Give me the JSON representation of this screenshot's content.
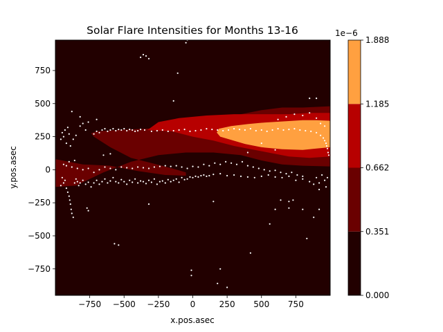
{
  "chart_data": {
    "type": "heatmap",
    "title": "Solar Flare Intensities for Months 13-16",
    "xlabel": "x.pos.asec",
    "ylabel": "y.pos.asec",
    "xlim": [
      -1000,
      1000
    ],
    "ylim": [
      -950,
      980
    ],
    "x_ticks": [
      -750,
      -500,
      -250,
      0,
      250,
      500,
      750
    ],
    "x_tick_labels": [
      "−750",
      "−500",
      "−250",
      "0",
      "250",
      "500",
      "750"
    ],
    "y_ticks": [
      -750,
      -500,
      -250,
      0,
      250,
      500,
      750
    ],
    "y_tick_labels": [
      "−750",
      "−500",
      "−250",
      "0",
      "250",
      "500",
      "750"
    ],
    "colorbar": {
      "multiplier": "1e−6",
      "levels": [
        0.0,
        0.351,
        0.662,
        1.185,
        1.888
      ],
      "level_labels": [
        "0.000",
        "0.351",
        "0.662",
        "1.185",
        "1.888"
      ],
      "colors": [
        "#220000",
        "#6a0000",
        "#b70000",
        "#ffa040"
      ]
    },
    "contours": [
      {
        "level_index": 1,
        "points": [
          [
            -1000,
            -130
          ],
          [
            -850,
            -120
          ],
          [
            -650,
            -20
          ],
          [
            -450,
            60
          ],
          [
            -250,
            110
          ],
          [
            -50,
            130
          ],
          [
            150,
            130
          ],
          [
            350,
            110
          ],
          [
            500,
            70
          ],
          [
            650,
            40
          ],
          [
            800,
            30
          ],
          [
            1000,
            25
          ],
          [
            1000,
            480
          ],
          [
            800,
            470
          ],
          [
            650,
            470
          ],
          [
            500,
            450
          ],
          [
            350,
            420
          ],
          [
            200,
            380
          ],
          [
            50,
            340
          ],
          [
            -150,
            320
          ],
          [
            -350,
            310
          ],
          [
            -550,
            300
          ],
          [
            -700,
            290
          ],
          [
            -740,
            275
          ],
          [
            -720,
            250
          ],
          [
            -600,
            170
          ],
          [
            -450,
            90
          ],
          [
            -300,
            50
          ],
          [
            -150,
            10
          ],
          [
            -50,
            -20
          ],
          [
            -50,
            -45
          ],
          [
            -200,
            -40
          ],
          [
            -400,
            -10
          ],
          [
            -600,
            30
          ],
          [
            -800,
            40
          ],
          [
            -900,
            60
          ],
          [
            -1000,
            80
          ]
        ]
      },
      {
        "level_index": 2,
        "points": [
          [
            1000,
            100
          ],
          [
            850,
            90
          ],
          [
            700,
            100
          ],
          [
            500,
            140
          ],
          [
            300,
            180
          ],
          [
            150,
            220
          ],
          [
            0,
            250
          ],
          [
            -150,
            290
          ],
          [
            -330,
            300
          ],
          [
            -250,
            360
          ],
          [
            -100,
            390
          ],
          [
            100,
            410
          ],
          [
            300,
            420
          ],
          [
            500,
            420
          ],
          [
            700,
            420
          ],
          [
            850,
            430
          ],
          [
            1000,
            430
          ]
        ]
      },
      {
        "level_index": 3,
        "points": [
          [
            1000,
            170
          ],
          [
            900,
            160
          ],
          [
            800,
            150
          ],
          [
            650,
            155
          ],
          [
            500,
            170
          ],
          [
            380,
            195
          ],
          [
            200,
            250
          ],
          [
            175,
            280
          ],
          [
            190,
            310
          ],
          [
            280,
            330
          ],
          [
            400,
            345
          ],
          [
            500,
            355
          ],
          [
            650,
            365
          ],
          [
            800,
            375
          ],
          [
            900,
            375
          ],
          [
            1000,
            370
          ]
        ]
      }
    ],
    "scatter_points": [
      [
        -960,
        -120
      ],
      [
        -950,
        -60
      ],
      [
        -940,
        -100
      ],
      [
        -930,
        -80
      ],
      [
        -920,
        -140
      ],
      [
        -910,
        -170
      ],
      [
        -900,
        -200
      ],
      [
        -895,
        -230
      ],
      [
        -890,
        -260
      ],
      [
        -885,
        -300
      ],
      [
        -880,
        -330
      ],
      [
        -870,
        -360
      ],
      [
        -860,
        -100
      ],
      [
        -850,
        -70
      ],
      [
        -840,
        -90
      ],
      [
        -830,
        -120
      ],
      [
        -820,
        -100
      ],
      [
        -800,
        -80
      ],
      [
        -780,
        -110
      ],
      [
        -760,
        -95
      ],
      [
        -740,
        -130
      ],
      [
        -720,
        -100
      ],
      [
        -700,
        -80
      ],
      [
        -680,
        -110
      ],
      [
        -660,
        -90
      ],
      [
        -640,
        -70
      ],
      [
        -620,
        -100
      ],
      [
        -600,
        -85
      ],
      [
        -580,
        -60
      ],
      [
        -560,
        -90
      ],
      [
        -540,
        -100
      ],
      [
        -520,
        -75
      ],
      [
        -500,
        -90
      ],
      [
        -480,
        -110
      ],
      [
        -460,
        -80
      ],
      [
        -440,
        -95
      ],
      [
        -420,
        -70
      ],
      [
        -400,
        -100
      ],
      [
        -380,
        -85
      ],
      [
        -360,
        -90
      ],
      [
        -340,
        -105
      ],
      [
        -320,
        -80
      ],
      [
        -300,
        -95
      ],
      [
        -280,
        -70
      ],
      [
        -260,
        -110
      ],
      [
        -240,
        -90
      ],
      [
        -220,
        -85
      ],
      [
        -200,
        -100
      ],
      [
        -180,
        -75
      ],
      [
        -160,
        -90
      ],
      [
        -140,
        -80
      ],
      [
        -120,
        -70
      ],
      [
        -100,
        -95
      ],
      [
        -80,
        -60
      ],
      [
        -60,
        -75
      ],
      [
        -40,
        -70
      ],
      [
        -20,
        -55
      ],
      [
        0,
        -60
      ],
      [
        20,
        -50
      ],
      [
        40,
        -55
      ],
      [
        60,
        -45
      ],
      [
        80,
        -40
      ],
      [
        100,
        -50
      ],
      [
        120,
        -45
      ],
      [
        150,
        -35
      ],
      [
        200,
        -30
      ],
      [
        250,
        -45
      ],
      [
        300,
        -40
      ],
      [
        350,
        -50
      ],
      [
        400,
        -55
      ],
      [
        450,
        -60
      ],
      [
        500,
        -50
      ],
      [
        550,
        -40
      ],
      [
        600,
        -55
      ],
      [
        650,
        -60
      ],
      [
        700,
        -50
      ],
      [
        750,
        -80
      ],
      [
        800,
        -70
      ],
      [
        850,
        -90
      ],
      [
        880,
        -110
      ],
      [
        900,
        -60
      ],
      [
        920,
        -100
      ],
      [
        940,
        -40
      ],
      [
        960,
        -80
      ],
      [
        970,
        -130
      ],
      [
        980,
        -60
      ],
      [
        -940,
        40
      ],
      [
        -920,
        30
      ],
      [
        -900,
        60
      ],
      [
        -880,
        20
      ],
      [
        -860,
        70
      ],
      [
        -840,
        10
      ],
      [
        -800,
        0
      ],
      [
        -760,
        10
      ],
      [
        -720,
        -20
      ],
      [
        -680,
        0
      ],
      [
        -640,
        20
      ],
      [
        -600,
        10
      ],
      [
        -560,
        0
      ],
      [
        -520,
        20
      ],
      [
        -480,
        15
      ],
      [
        -440,
        10
      ],
      [
        -400,
        20
      ],
      [
        -360,
        15
      ],
      [
        -320,
        10
      ],
      [
        -280,
        20
      ],
      [
        -240,
        25
      ],
      [
        -200,
        30
      ],
      [
        -160,
        25
      ],
      [
        -120,
        30
      ],
      [
        -80,
        20
      ],
      [
        -40,
        10
      ],
      [
        0,
        25
      ],
      [
        40,
        20
      ],
      [
        80,
        40
      ],
      [
        120,
        30
      ],
      [
        160,
        50
      ],
      [
        200,
        40
      ],
      [
        240,
        60
      ],
      [
        280,
        50
      ],
      [
        320,
        40
      ],
      [
        360,
        60
      ],
      [
        400,
        30
      ],
      [
        440,
        20
      ],
      [
        480,
        10
      ],
      [
        520,
        0
      ],
      [
        560,
        -10
      ],
      [
        600,
        -5
      ],
      [
        640,
        -20
      ],
      [
        680,
        -30
      ],
      [
        720,
        -20
      ],
      [
        760,
        -40
      ],
      [
        800,
        -50
      ],
      [
        -960,
        230
      ],
      [
        -950,
        280
      ],
      [
        -940,
        250
      ],
      [
        -930,
        300
      ],
      [
        -920,
        200
      ],
      [
        -910,
        320
      ],
      [
        -900,
        270
      ],
      [
        -890,
        180
      ],
      [
        -870,
        230
      ],
      [
        -850,
        260
      ],
      [
        -720,
        270
      ],
      [
        -700,
        290
      ],
      [
        -680,
        280
      ],
      [
        -660,
        300
      ],
      [
        -640,
        310
      ],
      [
        -620,
        290
      ],
      [
        -600,
        300
      ],
      [
        -580,
        310
      ],
      [
        -560,
        295
      ],
      [
        -540,
        305
      ],
      [
        -520,
        300
      ],
      [
        -500,
        310
      ],
      [
        -480,
        295
      ],
      [
        -460,
        305
      ],
      [
        -440,
        300
      ],
      [
        -420,
        290
      ],
      [
        -400,
        295
      ],
      [
        -380,
        305
      ],
      [
        -350,
        300
      ],
      [
        -300,
        290
      ],
      [
        -260,
        295
      ],
      [
        -220,
        300
      ],
      [
        -180,
        290
      ],
      [
        -140,
        295
      ],
      [
        -100,
        300
      ],
      [
        -60,
        305
      ],
      [
        -20,
        290
      ],
      [
        20,
        295
      ],
      [
        60,
        300
      ],
      [
        100,
        310
      ],
      [
        140,
        305
      ],
      [
        180,
        300
      ],
      [
        220,
        295
      ],
      [
        260,
        300
      ],
      [
        300,
        310
      ],
      [
        340,
        305
      ],
      [
        380,
        300
      ],
      [
        420,
        310
      ],
      [
        460,
        295
      ],
      [
        500,
        300
      ],
      [
        540,
        290
      ],
      [
        580,
        300
      ],
      [
        620,
        310
      ],
      [
        660,
        300
      ],
      [
        700,
        305
      ],
      [
        740,
        310
      ],
      [
        780,
        300
      ],
      [
        820,
        295
      ],
      [
        860,
        290
      ],
      [
        900,
        280
      ],
      [
        930,
        260
      ],
      [
        950,
        240
      ],
      [
        960,
        220
      ],
      [
        970,
        200
      ],
      [
        975,
        180
      ],
      [
        980,
        160
      ],
      [
        985,
        130
      ],
      [
        990,
        110
      ],
      [
        620,
        380
      ],
      [
        680,
        400
      ],
      [
        740,
        420
      ],
      [
        800,
        410
      ],
      [
        850,
        430
      ],
      [
        900,
        390
      ],
      [
        930,
        350
      ],
      [
        960,
        330
      ],
      [
        -820,
        330
      ],
      [
        -800,
        350
      ],
      [
        -780,
        300
      ],
      [
        -760,
        360
      ],
      [
        -880,
        440
      ],
      [
        -820,
        400
      ],
      [
        -700,
        380
      ],
      [
        -380,
        850
      ],
      [
        -360,
        870
      ],
      [
        -340,
        860
      ],
      [
        -320,
        840
      ],
      [
        -110,
        730
      ],
      [
        -50,
        960
      ],
      [
        -40,
        980
      ],
      [
        -20,
        990
      ],
      [
        -140,
        520
      ],
      [
        -570,
        -560
      ],
      [
        -540,
        -570
      ],
      [
        -770,
        -290
      ],
      [
        -760,
        -310
      ],
      [
        -650,
        110
      ],
      [
        -600,
        120
      ],
      [
        -320,
        -260
      ],
      [
        150,
        -240
      ],
      [
        -10,
        -760
      ],
      [
        -10,
        -800
      ],
      [
        200,
        -750
      ],
      [
        180,
        -860
      ],
      [
        250,
        -890
      ],
      [
        420,
        -630
      ],
      [
        560,
        -410
      ],
      [
        600,
        -300
      ],
      [
        700,
        -290
      ],
      [
        800,
        -300
      ],
      [
        830,
        -520
      ],
      [
        880,
        -360
      ],
      [
        920,
        -300
      ],
      [
        850,
        540
      ],
      [
        900,
        540
      ],
      [
        700,
        -240
      ],
      [
        640,
        -230
      ],
      [
        730,
        -230
      ],
      [
        920,
        -150
      ],
      [
        600,
        150
      ],
      [
        500,
        200
      ],
      [
        400,
        130
      ]
    ]
  }
}
